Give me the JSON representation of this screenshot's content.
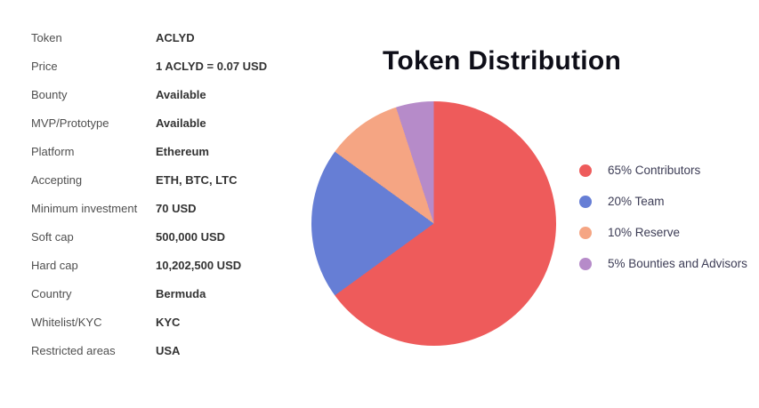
{
  "info_table": {
    "rows": [
      {
        "label": "Token",
        "value": "ACLYD"
      },
      {
        "label": "Price",
        "value": "1 ACLYD = 0.07 USD"
      },
      {
        "label": "Bounty",
        "value": "Available"
      },
      {
        "label": "MVP/Prototype",
        "value": "Available"
      },
      {
        "label": "Platform",
        "value": "Ethereum"
      },
      {
        "label": "Accepting",
        "value": "ETH, BTC, LTC"
      },
      {
        "label": "Minimum investment",
        "value": "70 USD"
      },
      {
        "label": "Soft cap",
        "value": "500,000 USD"
      },
      {
        "label": "Hard cap",
        "value": "10,202,500 USD"
      },
      {
        "label": "Country",
        "value": "Bermuda"
      },
      {
        "label": "Whitelist/KYC",
        "value": "KYC"
      },
      {
        "label": "Restricted areas",
        "value": "USA"
      }
    ]
  },
  "chart_data": {
    "type": "pie",
    "title": "Token Distribution",
    "labels": [
      "Contributors",
      "Team",
      "Reserve",
      "Bounties and Advisors"
    ],
    "values": [
      65,
      20,
      10,
      5
    ],
    "unit": "%",
    "colors": [
      "#ee5b5b",
      "#667ed5",
      "#f5a583",
      "#b68bc9"
    ],
    "legend_labels": [
      "65% Contributors",
      "20% Team",
      "10% Reserve",
      "5% Bounties and Advisors"
    ],
    "start_angle_deg": 0,
    "direction": "clockwise",
    "legend_position": "right",
    "title_color": "#0e0e18"
  }
}
